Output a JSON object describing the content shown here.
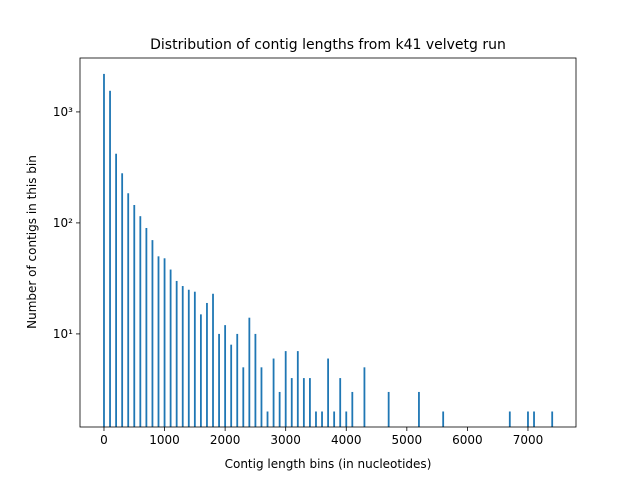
{
  "chart_data": {
    "type": "bar",
    "title": "Distribution of contig lengths from k41 velvetg run",
    "x_label": "Contig length bins (in nucleotides)",
    "y_label": "Number of contigs in this bin",
    "x": [
      0,
      100,
      200,
      300,
      400,
      500,
      600,
      700,
      800,
      900,
      1000,
      1100,
      1200,
      1300,
      1400,
      1500,
      1600,
      1700,
      1800,
      1900,
      2000,
      2100,
      2200,
      2300,
      2400,
      2500,
      2600,
      2700,
      2800,
      2900,
      3000,
      3100,
      3200,
      3300,
      3400,
      3500,
      3600,
      3700,
      3800,
      3900,
      4000,
      4100,
      4300,
      4700,
      5200,
      5600,
      6700,
      7000,
      7100,
      7400
    ],
    "values": [
      2200,
      1550,
      420,
      280,
      185,
      145,
      115,
      90,
      70,
      50,
      48,
      38,
      30,
      27,
      25,
      24,
      15,
      19,
      23,
      10,
      12,
      8,
      10,
      5,
      14,
      10,
      5,
      2,
      6,
      3,
      7,
      4,
      7,
      4,
      4,
      2,
      2,
      6,
      2,
      4,
      2,
      3,
      5,
      3,
      3,
      2,
      2,
      2,
      2,
      2
    ],
    "color": "#1f77b4",
    "log_y": true,
    "xlim": [
      -396,
      7793
    ],
    "ylim": [
      1.45,
      3060
    ],
    "xticks": [
      0,
      1000,
      2000,
      3000,
      4000,
      5000,
      6000,
      7000
    ],
    "yticks": [
      {
        "value": 10,
        "label": "10¹"
      },
      {
        "value": 100,
        "label": "10²"
      },
      {
        "value": 1000,
        "label": "10³"
      }
    ]
  }
}
